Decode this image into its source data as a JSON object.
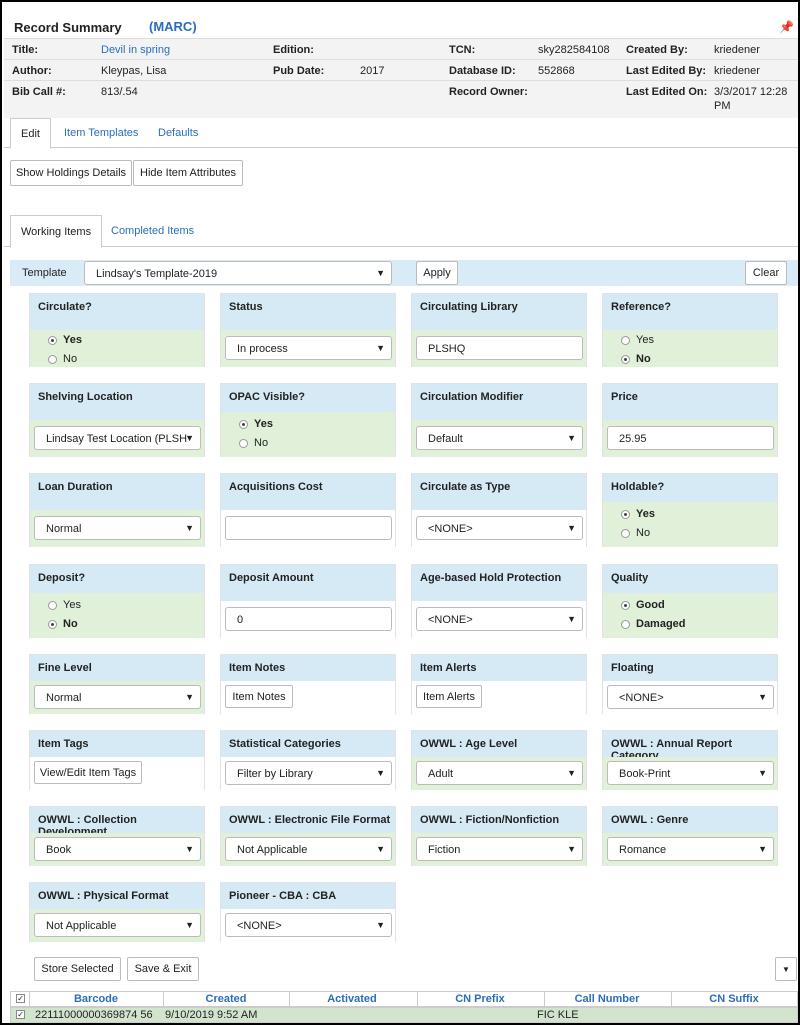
{
  "header": {
    "title": "Record Summary",
    "marc": "(MARC)"
  },
  "summary": {
    "title_label": "Title:",
    "title_value": "Devil in spring",
    "edition_label": "Edition:",
    "tcn_label": "TCN:",
    "tcn_value": "sky282584108",
    "created_by_label": "Created By:",
    "created_by_value": "kriedener",
    "author_label": "Author:",
    "author_value": "Kleypas, Lisa",
    "pub_date_label": "Pub Date:",
    "pub_date_value": "2017",
    "database_id_label": "Database ID:",
    "database_id_value": "552868",
    "last_edited_by_label": "Last Edited By:",
    "last_edited_by_value": "kriedener",
    "bib_call_label": "Bib Call #:",
    "bib_call_value": "813/.54",
    "record_owner_label": "Record Owner:",
    "last_edited_on_label": "Last Edited On:",
    "last_edited_on_value_1": "3/3/2017 12:28",
    "last_edited_on_value_2": "PM"
  },
  "tabs_top": [
    "Edit",
    "Item Templates",
    "Defaults"
  ],
  "buttons": {
    "show_holdings": "Show Holdings Details",
    "hide_attrs": "Hide Item Attributes",
    "apply": "Apply",
    "clear": "Clear",
    "store_selected": "Store Selected",
    "save_exit": "Save & Exit"
  },
  "tabs_items": [
    "Working Items",
    "Completed Items"
  ],
  "template": {
    "label": "Template",
    "value": "Lindsay's Template-2019"
  },
  "fields": {
    "circulate": {
      "label": "Circulate?",
      "opt1": "Yes",
      "opt2": "No"
    },
    "status": {
      "label": "Status",
      "value": "In process"
    },
    "circ_lib": {
      "label": "Circulating Library",
      "value": "PLSHQ"
    },
    "reference": {
      "label": "Reference?",
      "opt1": "Yes",
      "opt2": "No"
    },
    "shelving": {
      "label": "Shelving Location",
      "value": "Lindsay Test Location (PLSH"
    },
    "opac": {
      "label": "OPAC Visible?",
      "opt1": "Yes",
      "opt2": "No"
    },
    "circ_mod": {
      "label": "Circulation Modifier",
      "value": "Default"
    },
    "price": {
      "label": "Price",
      "value": "25.95"
    },
    "loan": {
      "label": "Loan Duration",
      "value": "Normal"
    },
    "acq_cost": {
      "label": "Acquisitions Cost",
      "value": ""
    },
    "circ_type": {
      "label": "Circulate as Type",
      "value": "<NONE>"
    },
    "holdable": {
      "label": "Holdable?",
      "opt1": "Yes",
      "opt2": "No"
    },
    "deposit": {
      "label": "Deposit?",
      "opt1": "Yes",
      "opt2": "No"
    },
    "deposit_amt": {
      "label": "Deposit Amount",
      "value": "0"
    },
    "age_hold": {
      "label": "Age-based Hold Protection",
      "value": "<NONE>"
    },
    "quality": {
      "label": "Quality",
      "opt1": "Good",
      "opt2": "Damaged"
    },
    "fine": {
      "label": "Fine Level",
      "value": "Normal"
    },
    "item_notes": {
      "label": "Item Notes",
      "button": "Item Notes"
    },
    "item_alerts": {
      "label": "Item Alerts",
      "button": "Item Alerts"
    },
    "floating": {
      "label": "Floating",
      "value": "<NONE>"
    },
    "item_tags": {
      "label": "Item Tags",
      "button": "View/Edit Item Tags"
    },
    "stat_cats": {
      "label": "Statistical Categories",
      "value": "Filter by Library"
    },
    "age_level": {
      "label": "OWWL : Age Level",
      "value": "Adult"
    },
    "annual": {
      "label": "OWWL : Annual Report Category",
      "value": "Book-Print"
    },
    "coll_dev": {
      "label": "OWWL : Collection Development",
      "value": "Book"
    },
    "efile": {
      "label": "OWWL : Electronic File Format",
      "value": "Not Applicable"
    },
    "fiction": {
      "label": "OWWL : Fiction/Nonfiction",
      "value": "Fiction"
    },
    "genre": {
      "label": "OWWL : Genre",
      "value": "Romance"
    },
    "phys": {
      "label": "OWWL : Physical Format",
      "value": "Not Applicable"
    },
    "pioneer": {
      "label": "Pioneer - CBA : CBA",
      "value": "<NONE>"
    }
  },
  "table": {
    "headers": [
      "Barcode",
      "Created",
      "Activated",
      "CN Prefix",
      "Call Number",
      "CN Suffix"
    ],
    "row": {
      "barcode": "22111000000369874 56",
      "created": "9/10/2019 9:52 AM",
      "call_number": "FIC KLE"
    }
  }
}
